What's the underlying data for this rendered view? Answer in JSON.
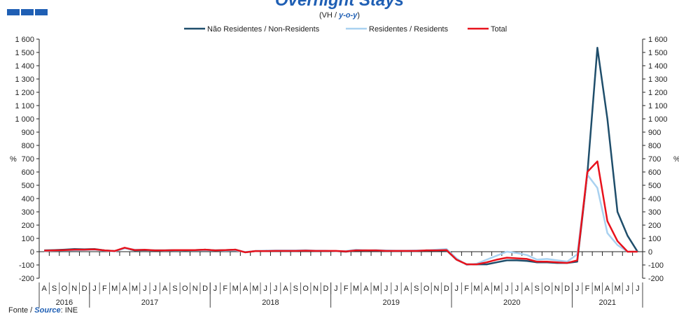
{
  "header": {
    "title": "Overnight Stays",
    "subtitle_pre": "(VH / ",
    "subtitle_em": "y-o-y",
    "subtitle_post": ")"
  },
  "footer": {
    "pre": "Fonte / ",
    "em": "Source",
    "post": ": INE"
  },
  "colors": {
    "logo": "#1f5fb4",
    "non_residents": "#1f4e6b",
    "residents": "#a9d1f0",
    "total": "#e8121c"
  },
  "chart_data": {
    "type": "line",
    "title": "Overnight Stays",
    "ylabel_left": "%",
    "ylabel_right": "%",
    "ylim": [
      -200,
      1600
    ],
    "yticks": [
      -200,
      -100,
      0,
      100,
      200,
      300,
      400,
      500,
      600,
      700,
      800,
      900,
      1000,
      1100,
      1200,
      1300,
      1400,
      1500,
      1600
    ],
    "ytick_labels": [
      "-200",
      "-100",
      "0",
      "100",
      "200",
      "300",
      "400",
      "500",
      "600",
      "700",
      "800",
      "900",
      "1 000",
      "1 100",
      "1 200",
      "1 300",
      "1 400",
      "1 500",
      "1 600"
    ],
    "legend_position": "top-center",
    "grid": false,
    "months": [
      "A",
      "S",
      "O",
      "N",
      "D",
      "J",
      "F",
      "M",
      "A",
      "M",
      "J",
      "J",
      "A",
      "S",
      "O",
      "N",
      "D",
      "J",
      "F",
      "M",
      "A",
      "M",
      "J",
      "J",
      "A",
      "S",
      "O",
      "N",
      "D",
      "J",
      "F",
      "M",
      "A",
      "M",
      "J",
      "J",
      "A",
      "S",
      "O",
      "N",
      "D",
      "J",
      "F",
      "M",
      "A",
      "M",
      "J",
      "J",
      "A",
      "S",
      "O",
      "N",
      "D",
      "J",
      "F",
      "M",
      "A",
      "M",
      "J",
      "J"
    ],
    "years": [
      {
        "label": "2016",
        "start": 0,
        "end": 4
      },
      {
        "label": "2017",
        "start": 5,
        "end": 16
      },
      {
        "label": "2018",
        "start": 17,
        "end": 28
      },
      {
        "label": "2019",
        "start": 29,
        "end": 40
      },
      {
        "label": "2020",
        "start": 41,
        "end": 52
      },
      {
        "label": "2021",
        "start": 53,
        "end": 59
      }
    ],
    "series": [
      {
        "name": "Não Residentes / Non-Residents",
        "color": "#1f4e6b",
        "values": [
          10,
          12,
          15,
          20,
          18,
          20,
          10,
          5,
          28,
          10,
          12,
          10,
          10,
          12,
          10,
          12,
          15,
          10,
          12,
          15,
          -5,
          5,
          5,
          5,
          5,
          5,
          8,
          5,
          5,
          5,
          0,
          10,
          10,
          8,
          5,
          5,
          5,
          5,
          10,
          8,
          10,
          -60,
          -95,
          -95,
          -95,
          -80,
          -65,
          -65,
          -70,
          -80,
          -80,
          -85,
          -85,
          -75,
          580,
          1535,
          1000,
          300,
          120,
          0
        ]
      },
      {
        "name": "Residentes / Residents",
        "color": "#a9d1f0",
        "values": [
          5,
          8,
          10,
          10,
          12,
          15,
          8,
          2,
          25,
          15,
          15,
          10,
          8,
          10,
          12,
          10,
          10,
          10,
          8,
          10,
          -2,
          5,
          8,
          10,
          10,
          10,
          12,
          8,
          8,
          5,
          5,
          15,
          10,
          12,
          10,
          8,
          8,
          10,
          10,
          15,
          20,
          -50,
          -100,
          -90,
          -60,
          -30,
          0,
          -10,
          -25,
          -60,
          -55,
          -65,
          -75,
          -20,
          580,
          480,
          140,
          50,
          0,
          0
        ]
      },
      {
        "name": "Total",
        "color": "#e8121c",
        "values": [
          8,
          10,
          12,
          15,
          15,
          18,
          10,
          5,
          30,
          12,
          14,
          10,
          10,
          12,
          12,
          12,
          15,
          10,
          12,
          15,
          -5,
          5,
          5,
          6,
          6,
          6,
          8,
          6,
          6,
          6,
          2,
          10,
          10,
          10,
          6,
          6,
          6,
          6,
          10,
          10,
          12,
          -60,
          -95,
          -95,
          -80,
          -60,
          -45,
          -50,
          -55,
          -75,
          -75,
          -80,
          -85,
          -65,
          600,
          680,
          230,
          80,
          0,
          0
        ]
      }
    ]
  }
}
